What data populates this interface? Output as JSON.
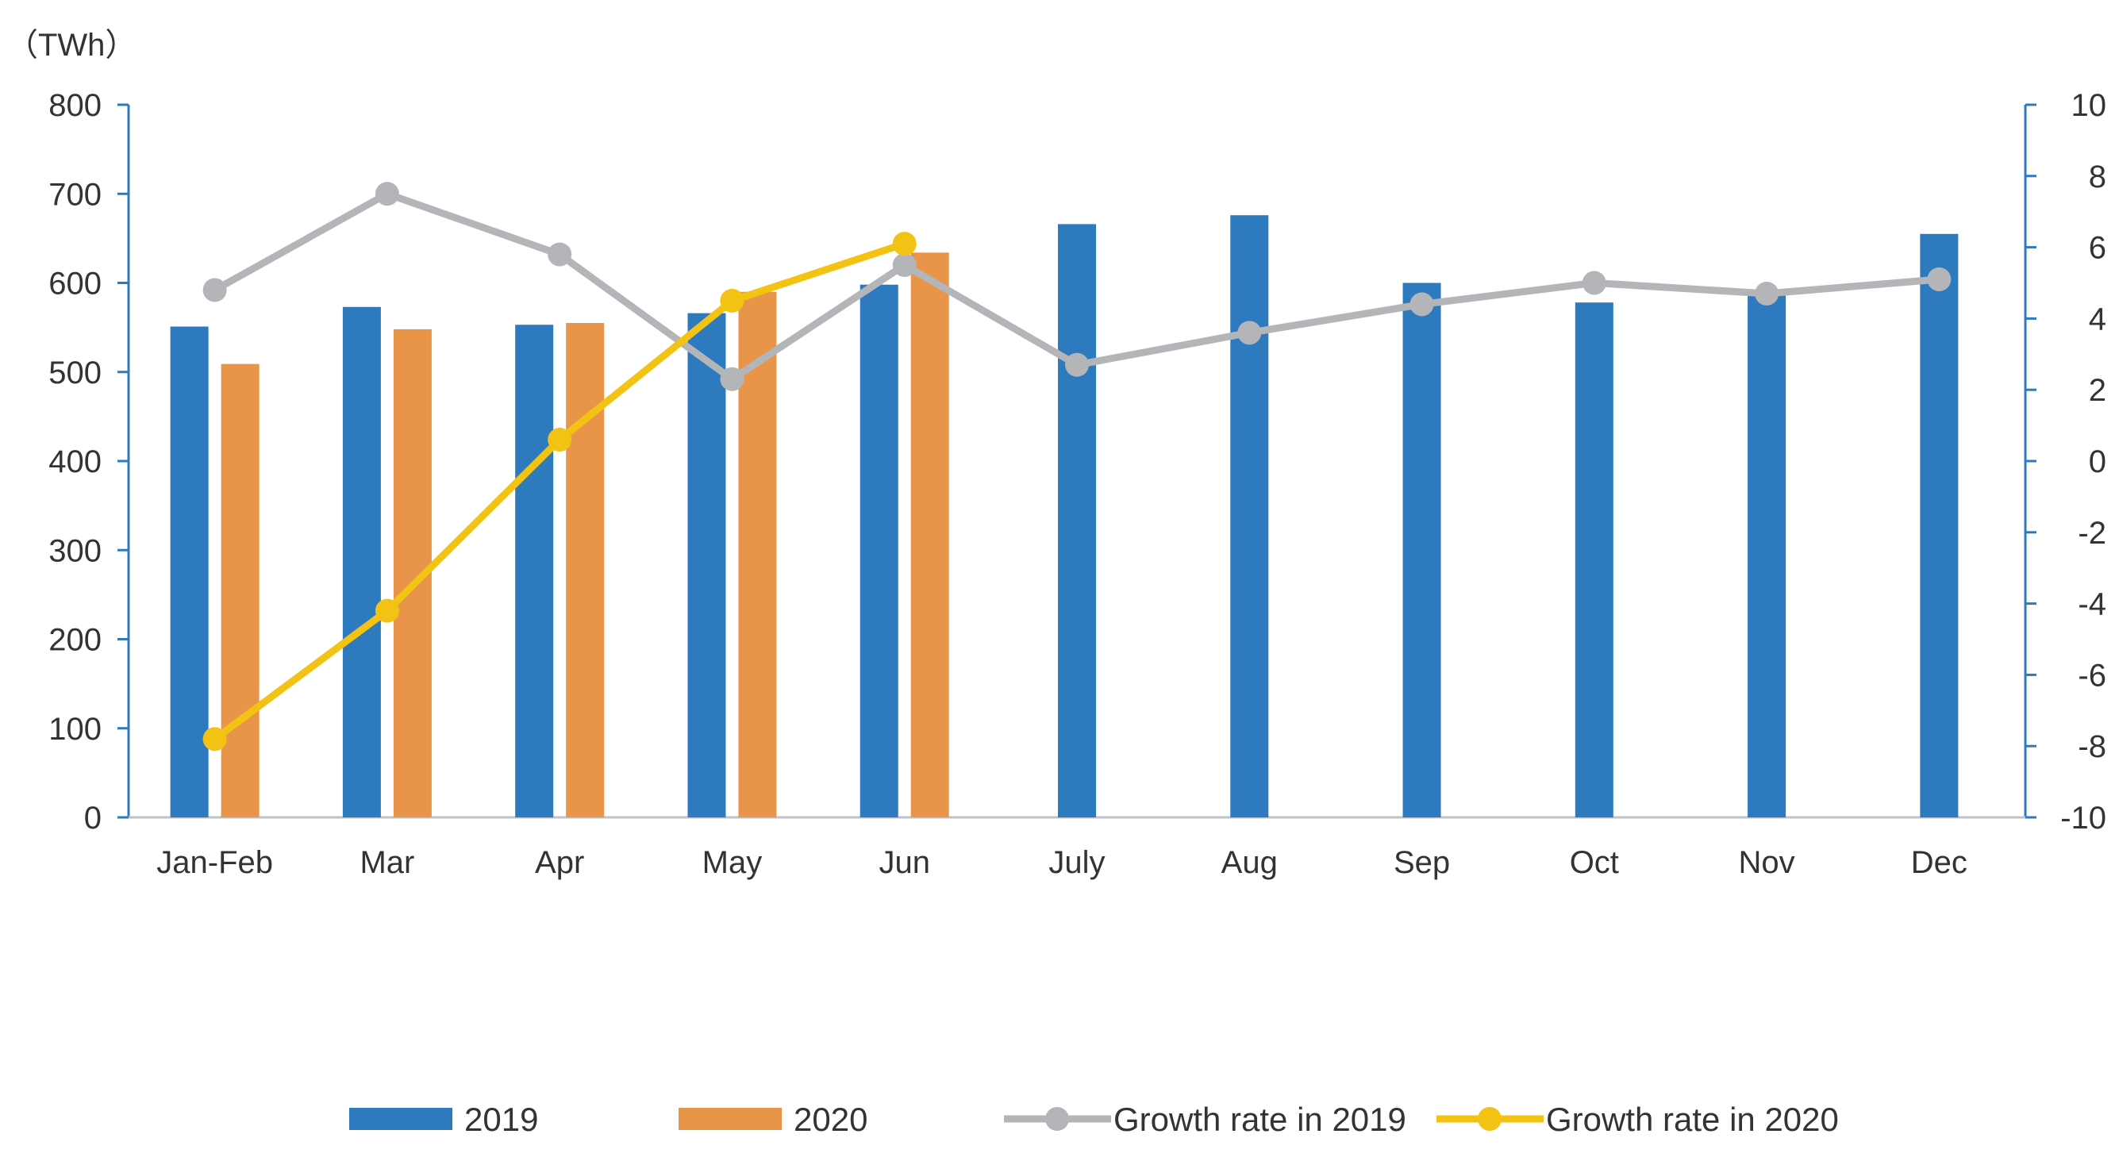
{
  "chart_data": {
    "type": "bar",
    "unit_label": "（TWh）",
    "categories": [
      "Jan-Feb",
      "Mar",
      "Apr",
      "May",
      "Jun",
      "July",
      "Aug",
      "Sep",
      "Oct",
      "Nov",
      "Dec"
    ],
    "series": [
      {
        "name": "2019",
        "kind": "bar",
        "axis": "left",
        "color": "#2E7ABF",
        "values": [
          551,
          573,
          553,
          566,
          598,
          666,
          676,
          600,
          578,
          588,
          655
        ]
      },
      {
        "name": "2020",
        "kind": "bar",
        "axis": "left",
        "color": "#E8954A",
        "values": [
          509,
          548,
          555,
          590,
          634,
          null,
          null,
          null,
          null,
          null,
          null
        ]
      },
      {
        "name": "Growth rate in 2019",
        "kind": "line",
        "axis": "right",
        "color": "#B4B5B8",
        "values": [
          4.8,
          7.5,
          5.8,
          2.3,
          5.5,
          2.7,
          3.6,
          4.4,
          5.0,
          4.7,
          5.1
        ]
      },
      {
        "name": "Growth rate in 2020",
        "kind": "line",
        "axis": "right",
        "color": "#F2C313",
        "values": [
          -7.8,
          -4.2,
          0.6,
          4.5,
          6.1,
          null,
          null,
          null,
          null,
          null,
          null
        ]
      }
    ],
    "y_left": {
      "min": 0,
      "max": 800,
      "ticks": [
        "0",
        "100",
        "200",
        "300",
        "400",
        "500",
        "600",
        "700",
        "800"
      ]
    },
    "y_right": {
      "min": -10,
      "max": 10,
      "ticks": [
        "-10",
        "-8",
        "-6",
        "-4",
        "-2",
        "0",
        "2",
        "4",
        "6",
        "8",
        "10"
      ]
    },
    "legend": {
      "position": "bottom"
    },
    "grid": false
  }
}
